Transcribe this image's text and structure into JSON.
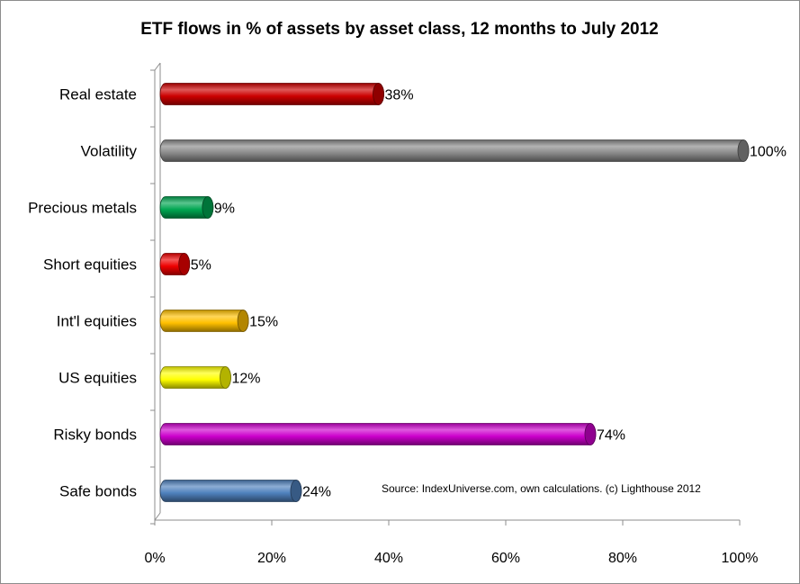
{
  "chart_data": {
    "type": "bar",
    "orientation": "horizontal",
    "title": "ETF flows in % of assets by asset class, 12 months to July 2012",
    "categories": [
      "Real estate",
      "Volatility",
      "Precious metals",
      "Short equities",
      "Int'l equities",
      "US equities",
      "Risky bonds",
      "Safe bonds"
    ],
    "values": [
      38,
      100,
      9,
      5,
      15,
      12,
      74,
      24
    ],
    "value_labels": [
      "38%",
      "100%",
      "9%",
      "5%",
      "15%",
      "12%",
      "74%",
      "24%"
    ],
    "colors": [
      "#cc0000",
      "#8a8a8a",
      "#00a651",
      "#ee0000",
      "#ffc000",
      "#ffff00",
      "#cc00cc",
      "#4f81bd"
    ],
    "xlim": [
      0,
      100
    ],
    "xticks": [
      0,
      20,
      40,
      60,
      80,
      100
    ],
    "xtick_labels": [
      "0%",
      "20%",
      "40%",
      "60%",
      "80%",
      "100%"
    ],
    "grid": false,
    "legend": "none",
    "annotation": "Source: IndexUniverse.com, own calculations. (c) Lighthouse 2012"
  }
}
